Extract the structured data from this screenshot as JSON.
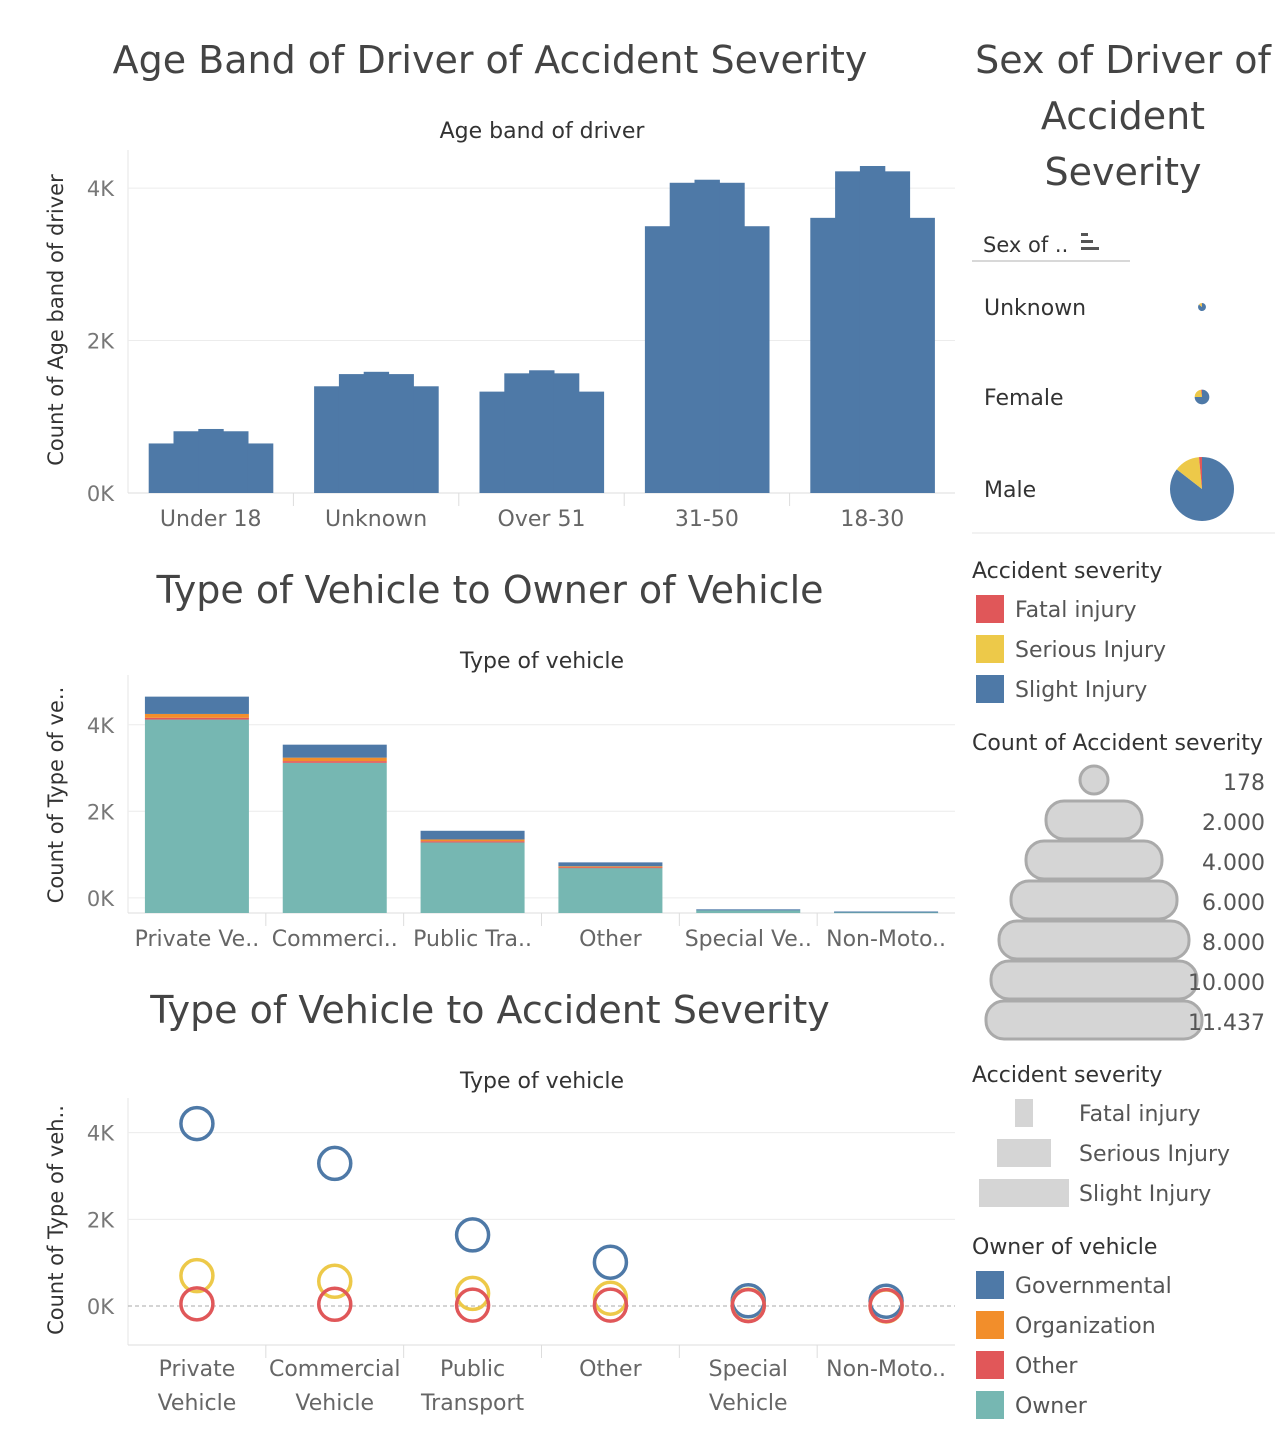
{
  "colors": {
    "fatal": "#e05759",
    "serious": "#edc949",
    "slight": "#4e79a7",
    "governmental": "#4e79a7",
    "organization": "#f28e2b",
    "other": "#e15759",
    "owner": "#76b7b2",
    "size_gray": "#d5d5d5"
  },
  "chart_data": [
    {
      "id": "age-band",
      "type": "bar",
      "title": "Age Band of Driver of Accident Severity",
      "subtitle": "Age band of driver",
      "ylabel": "Count of Age band of driver",
      "ylim": [
        0,
        4500
      ],
      "yticks": [
        0,
        2000,
        4000
      ],
      "ytick_labels": [
        "0K",
        "2K",
        "4K"
      ],
      "categories": [
        "Under 18",
        "Unknown",
        "Over 51",
        "31-50",
        "18-30"
      ],
      "series": [
        {
          "values": [
            650,
            1400,
            1330,
            3500,
            3610
          ]
        },
        {
          "values": [
            810,
            1560,
            1570,
            4070,
            4220
          ]
        },
        {
          "values": [
            840,
            1590,
            1610,
            4110,
            4290
          ]
        },
        {
          "values": [
            810,
            1560,
            1570,
            4070,
            4220
          ]
        },
        {
          "values": [
            650,
            1400,
            1330,
            3500,
            3610
          ]
        }
      ]
    },
    {
      "id": "vehicle-owner",
      "type": "bar",
      "stacked": true,
      "title": "Type of Vehicle to Owner of Vehicle",
      "subtitle": "Type of vehicle",
      "ylabel": "Count of Type of ve..",
      "ylim": [
        -350,
        5150
      ],
      "yticks": [
        0,
        2000,
        4000
      ],
      "ytick_labels": [
        "0K",
        "2K",
        "4K"
      ],
      "categories": [
        "Private Ve..",
        "Commerci..",
        "Public Tra..",
        "Other",
        "Special Ve..",
        "Non-Moto.."
      ],
      "series": [
        {
          "name": "Owner",
          "values": [
            4470,
            3470,
            1630,
            1050,
            60,
            20
          ]
        },
        {
          "name": "Other",
          "values": [
            40,
            40,
            30,
            10,
            0,
            0
          ]
        },
        {
          "name": "Organization",
          "values": [
            90,
            80,
            40,
            20,
            0,
            0
          ]
        },
        {
          "name": "Governmental",
          "values": [
            400,
            300,
            200,
            90,
            25,
            15
          ]
        }
      ]
    },
    {
      "id": "vehicle-severity",
      "type": "scatter",
      "title": "Type of Vehicle to Accident Severity",
      "subtitle": "Type of vehicle",
      "ylabel": "Count of Type of veh..",
      "ylim": [
        -900,
        4800
      ],
      "yticks": [
        0,
        2000,
        4000
      ],
      "ytick_labels": [
        "0K",
        "2K",
        "4K"
      ],
      "categories": [
        "Private\nVehicle",
        "Commercial\nVehicle",
        "Public\nTransport",
        "Other",
        "Special\nVehicle",
        "Non-Moto.."
      ],
      "series": [
        {
          "name": "Slight Injury",
          "values": [
            4210,
            3290,
            1640,
            1010,
            120,
            110
          ]
        },
        {
          "name": "Serious Injury",
          "values": [
            700,
            570,
            290,
            180,
            20,
            0
          ]
        },
        {
          "name": "Fatal injury",
          "values": [
            50,
            40,
            20,
            20,
            10,
            10
          ]
        }
      ]
    },
    {
      "id": "sex-pie",
      "type": "pie",
      "title": "Sex of Driver of Accident Severity",
      "header": "Sex of ..",
      "categories": [
        "Unknown",
        "Female",
        "Male"
      ],
      "counts": [
        178,
        600,
        11437
      ],
      "series": [
        {
          "name": "Slight Injury",
          "values": [
            0.86,
            0.75,
            0.855
          ]
        },
        {
          "name": "Serious Injury",
          "values": [
            0.13,
            0.23,
            0.13
          ]
        },
        {
          "name": "Fatal injury",
          "values": [
            0.01,
            0.02,
            0.015
          ]
        }
      ]
    }
  ],
  "legends": {
    "severity_color": {
      "title": "Accident severity",
      "items": [
        {
          "label": "Fatal injury",
          "color": "#e05759"
        },
        {
          "label": "Serious Injury",
          "color": "#edc949"
        },
        {
          "label": "Slight Injury",
          "color": "#4e79a7"
        }
      ]
    },
    "count_size": {
      "title": "Count of Accident severity",
      "items": [
        "178",
        "2.000",
        "4.000",
        "6.000",
        "8.000",
        "10.000",
        "11.437"
      ]
    },
    "severity_size": {
      "title": "Accident severity",
      "items": [
        "Fatal injury",
        "Serious Injury",
        "Slight Injury"
      ]
    },
    "owner_color": {
      "title": "Owner of vehicle",
      "items": [
        {
          "label": "Governmental",
          "color": "#4e79a7"
        },
        {
          "label": "Organization",
          "color": "#f28e2b"
        },
        {
          "label": "Other",
          "color": "#e15759"
        },
        {
          "label": "Owner",
          "color": "#76b7b2"
        }
      ]
    }
  }
}
